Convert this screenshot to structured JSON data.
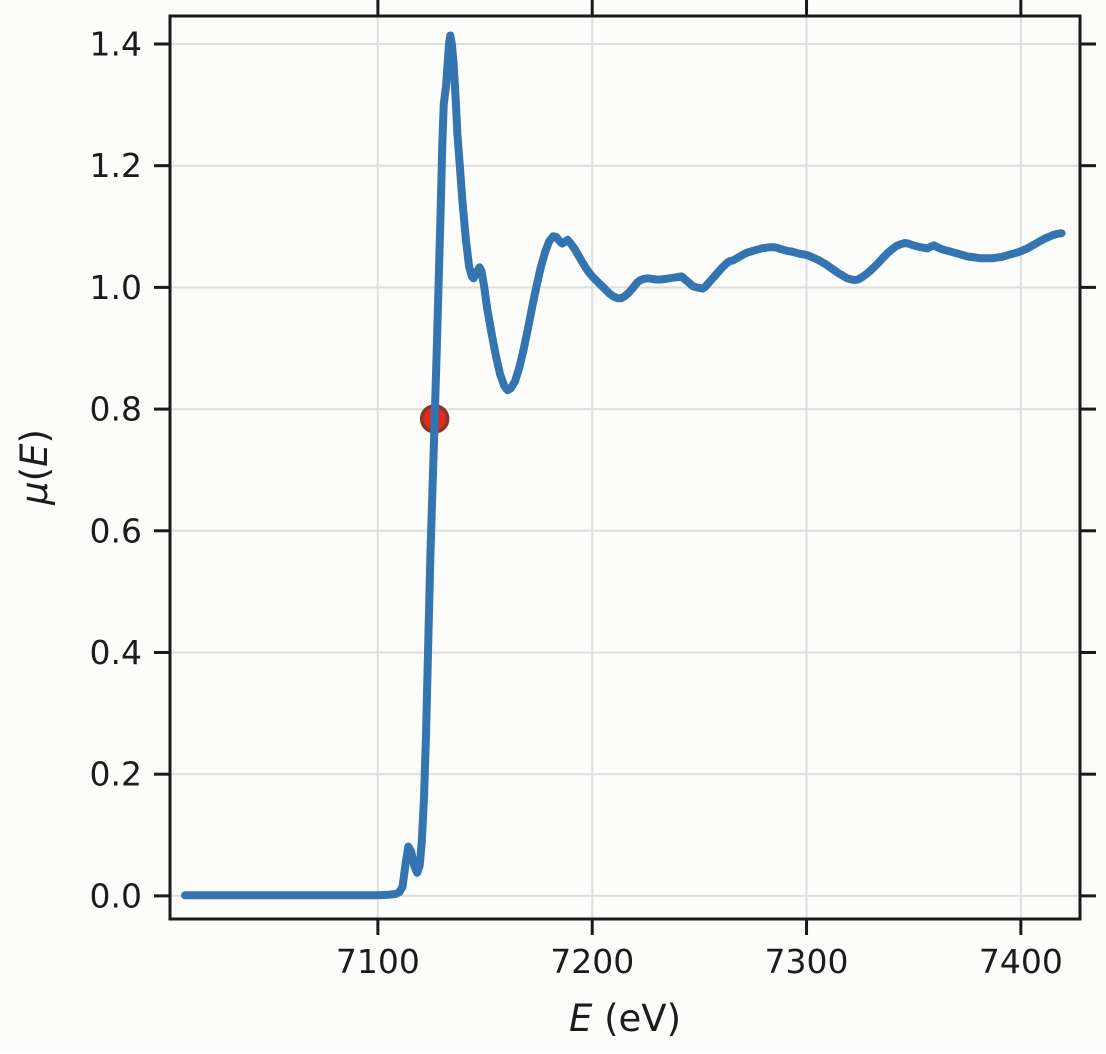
{
  "figure": {
    "background": "#fcfcfa",
    "plot_background": "#fcfcfa",
    "spine_color": "#1a1a1a",
    "grid_color": "#dedede",
    "text_color": "#1c1c1c"
  },
  "chart_data": {
    "type": "line",
    "title": "",
    "xlabel": "E (eV)",
    "ylabel": "μ(E)",
    "xlabel_parts": [
      {
        "t": "E",
        "italic": true
      },
      {
        "t": " (eV)",
        "italic": false
      }
    ],
    "ylabel_parts": [
      {
        "t": "μ",
        "italic": true
      },
      {
        "t": "(",
        "italic": false
      },
      {
        "t": "E",
        "italic": true
      },
      {
        "t": ")",
        "italic": false
      }
    ],
    "xlim": [
      7003,
      7427.6
    ],
    "ylim": [
      -0.038,
      1.446
    ],
    "grid": true,
    "legend": "none",
    "x_ticks": [
      {
        "v": 7100,
        "label": "7100"
      },
      {
        "v": 7200,
        "label": "7200"
      },
      {
        "v": 7300,
        "label": "7300"
      },
      {
        "v": 7400,
        "label": "7400"
      }
    ],
    "y_ticks": [
      {
        "v": 0.0,
        "label": "0.0"
      },
      {
        "v": 0.2,
        "label": "0.2"
      },
      {
        "v": 0.4,
        "label": "0.4"
      },
      {
        "v": 0.6,
        "label": "0.6"
      },
      {
        "v": 0.8,
        "label": "0.8"
      },
      {
        "v": 1.0,
        "label": "1.0"
      },
      {
        "v": 1.2,
        "label": "1.2"
      },
      {
        "v": 1.4,
        "label": "1.4"
      }
    ],
    "series": [
      {
        "name": "mu_of_E",
        "color": "#3474b0",
        "line_width": 8,
        "points": [
          [
            7010,
            0.001
          ],
          [
            7040,
            0.001
          ],
          [
            7070,
            0.001
          ],
          [
            7090,
            0.001
          ],
          [
            7100,
            0.001
          ],
          [
            7105,
            0.002
          ],
          [
            7108,
            0.003
          ],
          [
            7110,
            0.006
          ],
          [
            7111.5,
            0.015
          ],
          [
            7113,
            0.055
          ],
          [
            7114.2,
            0.081
          ],
          [
            7115.5,
            0.073
          ],
          [
            7117,
            0.049
          ],
          [
            7118.3,
            0.038
          ],
          [
            7119.5,
            0.05
          ],
          [
            7120.5,
            0.09
          ],
          [
            7121.5,
            0.16
          ],
          [
            7122.5,
            0.27
          ],
          [
            7123.5,
            0.42
          ],
          [
            7124.5,
            0.56
          ],
          [
            7125.5,
            0.67
          ],
          [
            7126.5,
            0.784
          ],
          [
            7127.5,
            0.9
          ],
          [
            7128.3,
            1.0
          ],
          [
            7129.3,
            1.13
          ],
          [
            7130,
            1.23
          ],
          [
            7130.7,
            1.3
          ],
          [
            7131.2,
            1.315
          ],
          [
            7131.8,
            1.33
          ],
          [
            7132.5,
            1.365
          ],
          [
            7133.2,
            1.4
          ],
          [
            7133.8,
            1.414
          ],
          [
            7134.5,
            1.4
          ],
          [
            7135.3,
            1.37
          ],
          [
            7136.2,
            1.315
          ],
          [
            7137.1,
            1.252
          ],
          [
            7138.2,
            1.2
          ],
          [
            7139.5,
            1.14
          ],
          [
            7141,
            1.08
          ],
          [
            7142.5,
            1.035
          ],
          [
            7143.8,
            1.018
          ],
          [
            7144.6,
            1.015
          ],
          [
            7145.5,
            1.02
          ],
          [
            7146.6,
            1.028
          ],
          [
            7147.4,
            1.033
          ],
          [
            7148.3,
            1.027
          ],
          [
            7149.5,
            1.003
          ],
          [
            7151,
            0.965
          ],
          [
            7153,
            0.925
          ],
          [
            7155,
            0.888
          ],
          [
            7157,
            0.857
          ],
          [
            7159,
            0.838
          ],
          [
            7160.5,
            0.831
          ],
          [
            7162,
            0.834
          ],
          [
            7164,
            0.846
          ],
          [
            7166,
            0.868
          ],
          [
            7168,
            0.898
          ],
          [
            7170,
            0.932
          ],
          [
            7172,
            0.968
          ],
          [
            7174,
            1.002
          ],
          [
            7176,
            1.033
          ],
          [
            7178,
            1.058
          ],
          [
            7180,
            1.076
          ],
          [
            7181.8,
            1.084
          ],
          [
            7183.2,
            1.083
          ],
          [
            7184.5,
            1.077
          ],
          [
            7186,
            1.072
          ],
          [
            7187.2,
            1.075
          ],
          [
            7188.5,
            1.078
          ],
          [
            7190,
            1.072
          ],
          [
            7192,
            1.062
          ],
          [
            7194,
            1.05
          ],
          [
            7196,
            1.038
          ],
          [
            7198,
            1.027
          ],
          [
            7200,
            1.018
          ],
          [
            7202,
            1.011
          ],
          [
            7204,
            1.004
          ],
          [
            7206,
            0.997
          ],
          [
            7208,
            0.99
          ],
          [
            7210,
            0.985
          ],
          [
            7212,
            0.982
          ],
          [
            7213.5,
            0.982
          ],
          [
            7215,
            0.985
          ],
          [
            7217,
            0.991
          ],
          [
            7219,
            0.999
          ],
          [
            7221,
            1.008
          ],
          [
            7222.5,
            1.012
          ],
          [
            7224,
            1.014
          ],
          [
            7226,
            1.015
          ],
          [
            7228,
            1.014
          ],
          [
            7230,
            1.013
          ],
          [
            7232,
            1.013
          ],
          [
            7234,
            1.014
          ],
          [
            7236,
            1.015
          ],
          [
            7238,
            1.016
          ],
          [
            7240,
            1.017
          ],
          [
            7241.7,
            1.018
          ],
          [
            7243,
            1.014
          ],
          [
            7245,
            1.008
          ],
          [
            7247,
            1.002
          ],
          [
            7248.7,
            1.0
          ],
          [
            7250.2,
            0.999
          ],
          [
            7251.5,
            0.998
          ],
          [
            7252.7,
            1.001
          ],
          [
            7254.5,
            1.008
          ],
          [
            7256.5,
            1.016
          ],
          [
            7258.5,
            1.024
          ],
          [
            7260.5,
            1.032
          ],
          [
            7262.5,
            1.039
          ],
          [
            7264,
            1.043
          ],
          [
            7265.5,
            1.044
          ],
          [
            7267,
            1.047
          ],
          [
            7269,
            1.051
          ],
          [
            7271,
            1.055
          ],
          [
            7273,
            1.058
          ],
          [
            7275,
            1.06
          ],
          [
            7277,
            1.062
          ],
          [
            7279,
            1.064
          ],
          [
            7281,
            1.065
          ],
          [
            7283,
            1.066
          ],
          [
            7285,
            1.066
          ],
          [
            7287,
            1.064
          ],
          [
            7289,
            1.062
          ],
          [
            7291,
            1.06
          ],
          [
            7293,
            1.059
          ],
          [
            7295,
            1.057
          ],
          [
            7297,
            1.055
          ],
          [
            7299,
            1.054
          ],
          [
            7301,
            1.052
          ],
          [
            7303,
            1.049
          ],
          [
            7305,
            1.046
          ],
          [
            7307,
            1.042
          ],
          [
            7309,
            1.038
          ],
          [
            7311,
            1.033
          ],
          [
            7313,
            1.028
          ],
          [
            7315,
            1.023
          ],
          [
            7317,
            1.019
          ],
          [
            7319,
            1.015
          ],
          [
            7321,
            1.013
          ],
          [
            7322.5,
            1.012
          ],
          [
            7324,
            1.013
          ],
          [
            7326,
            1.017
          ],
          [
            7328,
            1.022
          ],
          [
            7330,
            1.028
          ],
          [
            7332,
            1.035
          ],
          [
            7334,
            1.042
          ],
          [
            7336,
            1.05
          ],
          [
            7338,
            1.057
          ],
          [
            7340,
            1.063
          ],
          [
            7342,
            1.068
          ],
          [
            7344,
            1.071
          ],
          [
            7346,
            1.073
          ],
          [
            7347.5,
            1.072
          ],
          [
            7349,
            1.07
          ],
          [
            7351,
            1.068
          ],
          [
            7353,
            1.066
          ],
          [
            7355,
            1.065
          ],
          [
            7356.5,
            1.064
          ],
          [
            7358,
            1.067
          ],
          [
            7359.5,
            1.069
          ],
          [
            7361,
            1.066
          ],
          [
            7363,
            1.063
          ],
          [
            7365,
            1.061
          ],
          [
            7367,
            1.059
          ],
          [
            7369,
            1.057
          ],
          [
            7371,
            1.055
          ],
          [
            7373,
            1.053
          ],
          [
            7375,
            1.051
          ],
          [
            7377,
            1.05
          ],
          [
            7379,
            1.049
          ],
          [
            7381,
            1.048
          ],
          [
            7383,
            1.048
          ],
          [
            7385,
            1.048
          ],
          [
            7387,
            1.048
          ],
          [
            7389,
            1.049
          ],
          [
            7391,
            1.05
          ],
          [
            7393,
            1.052
          ],
          [
            7395,
            1.054
          ],
          [
            7397,
            1.056
          ],
          [
            7399,
            1.058
          ],
          [
            7401,
            1.061
          ],
          [
            7403,
            1.064
          ],
          [
            7405,
            1.068
          ],
          [
            7407,
            1.072
          ],
          [
            7409,
            1.076
          ],
          [
            7411,
            1.08
          ],
          [
            7413,
            1.083
          ],
          [
            7415,
            1.086
          ],
          [
            7417,
            1.088
          ],
          [
            7419,
            1.089
          ]
        ]
      }
    ],
    "e0_marker": {
      "name": "e0_point",
      "x": 7126.5,
      "y": 0.784,
      "radius": 13,
      "fill": "#dd2c22",
      "edge": "#8a332b",
      "edge_width": 3.5
    }
  }
}
